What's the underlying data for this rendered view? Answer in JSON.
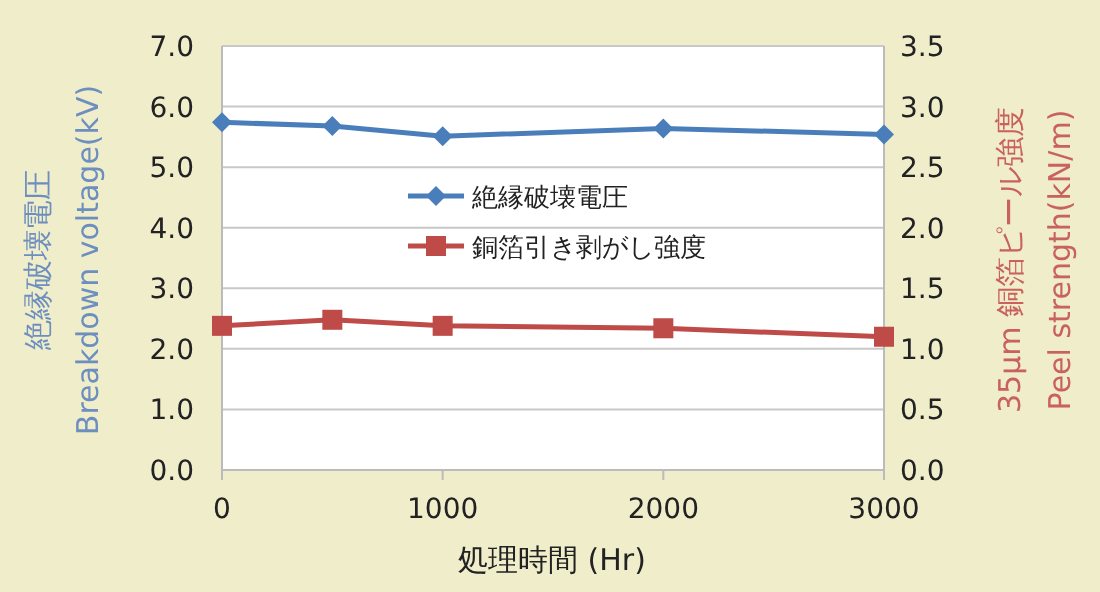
{
  "chart_data": {
    "type": "line",
    "xlabel": "処理時間 (Hr)",
    "ylabel": "絶縁破壊電圧\nBreakdown voltage(kV)",
    "y2label": "35μm 銅箔ピール強度\nPeel strength(kN/m)",
    "x": [
      0,
      500,
      1000,
      2000,
      3000
    ],
    "series": [
      {
        "name": "絶縁破壊電圧",
        "color": "#4a7ebb",
        "marker": "diamond",
        "values": [
          5.74,
          5.68,
          5.51,
          5.64,
          5.54
        ]
      },
      {
        "name": "銅箔引き剥がし強度",
        "color": "#be4b48",
        "marker": "square",
        "axis": "y2",
        "values": [
          1.19,
          1.24,
          1.19,
          1.17,
          1.1
        ]
      }
    ],
    "xlim": [
      0,
      3000
    ],
    "xticks": [
      0,
      1000,
      2000,
      3000
    ],
    "ylim": [
      0,
      7
    ],
    "yticks": [
      {
        "value": 0,
        "label": "0.0"
      },
      {
        "value": 1,
        "label": "1.0"
      },
      {
        "value": 2,
        "label": "2.0"
      },
      {
        "value": 3,
        "label": "3.0"
      },
      {
        "value": 4,
        "label": "4.0"
      },
      {
        "value": 5,
        "label": "5.0"
      },
      {
        "value": 6,
        "label": "6.0"
      },
      {
        "value": 7,
        "label": "7.0"
      }
    ],
    "y2lim": [
      0,
      3.5
    ],
    "y2ticks": [
      {
        "value": 0,
        "label": "0.0"
      },
      {
        "value": 0.5,
        "label": "0.5"
      },
      {
        "value": 1,
        "label": "1.0"
      },
      {
        "value": 1.5,
        "label": "1.5"
      },
      {
        "value": 2,
        "label": "2.0"
      },
      {
        "value": 2.5,
        "label": "2.5"
      },
      {
        "value": 3,
        "label": "3.0"
      },
      {
        "value": 3.5,
        "label": "3.5"
      }
    ],
    "grid": "y",
    "legend": "center",
    "line_style": "solid"
  }
}
